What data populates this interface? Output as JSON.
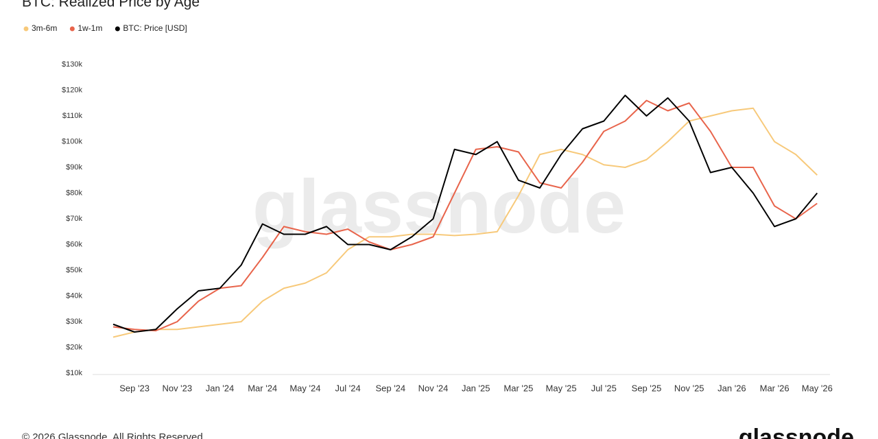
{
  "chart_data": {
    "type": "line",
    "title": "BTC: Realized Price by Age",
    "categories": [
      null,
      "Sep '23",
      null,
      "Nov '23",
      null,
      "Jan '24",
      null,
      "Mar '24",
      null,
      "May '24",
      null,
      "Jul '24",
      null,
      "Sep '24",
      null,
      "Nov '24",
      null,
      "Jan '25",
      null,
      "Mar '25",
      null,
      "May '25",
      null,
      "Jul '25",
      null,
      "Sep '25",
      null,
      "Nov '25",
      null,
      "Jan '26",
      null,
      "Mar '26",
      null,
      "May '26"
    ],
    "series": [
      {
        "name": "3m-6m",
        "color": "#f7c97a",
        "values": [
          24000,
          26000,
          27000,
          27000,
          28000,
          29000,
          30000,
          38000,
          43000,
          45000,
          49000,
          58000,
          63000,
          63000,
          64000,
          64000,
          63500,
          64000,
          65000,
          79000,
          95000,
          97000,
          95000,
          91000,
          90000,
          93000,
          100000,
          108000,
          110000,
          112000,
          113000,
          100000,
          95000,
          87000
        ]
      },
      {
        "name": "1w-1m",
        "color": "#e8644b",
        "values": [
          28000,
          27000,
          26500,
          30000,
          38000,
          43000,
          44000,
          55000,
          67000,
          65000,
          64000,
          66000,
          61000,
          58000,
          60000,
          63000,
          80000,
          97000,
          98000,
          96000,
          84000,
          82000,
          92000,
          104000,
          108000,
          116000,
          112000,
          115000,
          104000,
          90000,
          90000,
          75000,
          70000,
          76000
        ]
      },
      {
        "name": "BTC: Price [USD]",
        "color": "#000000",
        "values": [
          29000,
          26000,
          27000,
          35000,
          42000,
          43000,
          52000,
          68000,
          64000,
          64000,
          67000,
          60000,
          60000,
          58000,
          63000,
          70000,
          97000,
          95000,
          100000,
          85000,
          82000,
          95000,
          105000,
          108000,
          118000,
          110000,
          117000,
          108000,
          88000,
          90000,
          80000,
          67000,
          70000,
          80000
        ]
      }
    ],
    "ylim": [
      10000,
      130000
    ],
    "yticks": [
      {
        "value": 10000,
        "label": "$10k"
      },
      {
        "value": 20000,
        "label": "$20k"
      },
      {
        "value": 30000,
        "label": "$30k"
      },
      {
        "value": 40000,
        "label": "$40k"
      },
      {
        "value": 50000,
        "label": "$50k"
      },
      {
        "value": 60000,
        "label": "$60k"
      },
      {
        "value": 70000,
        "label": "$70k"
      },
      {
        "value": 80000,
        "label": "$80k"
      },
      {
        "value": 90000,
        "label": "$90k"
      },
      {
        "value": 100000,
        "label": "$100k"
      },
      {
        "value": 110000,
        "label": "$110k"
      },
      {
        "value": 120000,
        "label": "$120k"
      },
      {
        "value": 130000,
        "label": "$130k"
      }
    ],
    "watermark": "glassnode",
    "footer": "© 2026 Glassnode. All Rights Reserved.",
    "logo": "glassnode"
  }
}
